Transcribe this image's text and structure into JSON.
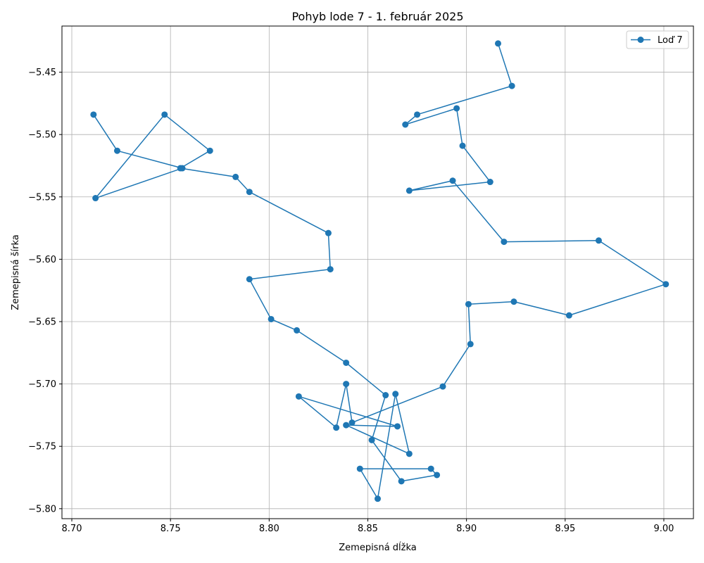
{
  "chart_data": {
    "type": "line",
    "title": "Pohyb lode 7 - 1. február 2025",
    "xlabel": "Zemepisná dĺžka",
    "ylabel": "Zemepisná šírka",
    "xlim": [
      8.695,
      9.015
    ],
    "ylim": [
      -5.808,
      -5.413
    ],
    "xticks": [
      8.7,
      8.75,
      8.8,
      8.85,
      8.9,
      8.95,
      9.0
    ],
    "xtick_labels": [
      "8.70",
      "8.75",
      "8.80",
      "8.85",
      "8.90",
      "8.95",
      "9.00"
    ],
    "yticks": [
      -5.8,
      -5.75,
      -5.7,
      -5.65,
      -5.6,
      -5.55,
      -5.5,
      -5.45
    ],
    "ytick_labels": [
      "−5.80",
      "−5.75",
      "−5.70",
      "−5.65",
      "−5.60",
      "−5.55",
      "−5.50",
      "−5.45"
    ],
    "grid": true,
    "legend_position": "top-right",
    "color": "#1f77b4",
    "series": [
      {
        "name": "Loď 7",
        "x": [
          8.916,
          8.923,
          8.875,
          8.869,
          8.895,
          8.898,
          8.912,
          8.871,
          8.893,
          8.919,
          8.967,
          9.001,
          8.952,
          8.924,
          8.901,
          8.902,
          8.888,
          8.842,
          8.839,
          8.834,
          8.815,
          8.865,
          8.839,
          8.871,
          8.864,
          8.855,
          8.846,
          8.882,
          8.885,
          8.867,
          8.852,
          8.859,
          8.839,
          8.814,
          8.801,
          8.79,
          8.831,
          8.83,
          8.79,
          8.783,
          8.755,
          8.77,
          8.747,
          8.712,
          8.756,
          8.723,
          8.711
        ],
        "y": [
          -5.427,
          -5.461,
          -5.484,
          -5.492,
          -5.479,
          -5.509,
          -5.538,
          -5.545,
          -5.537,
          -5.586,
          -5.585,
          -5.62,
          -5.645,
          -5.634,
          -5.636,
          -5.668,
          -5.702,
          -5.731,
          -5.7,
          -5.735,
          -5.71,
          -5.734,
          -5.733,
          -5.756,
          -5.708,
          -5.792,
          -5.768,
          -5.768,
          -5.773,
          -5.778,
          -5.745,
          -5.709,
          -5.683,
          -5.657,
          -5.648,
          -5.616,
          -5.608,
          -5.579,
          -5.546,
          -5.534,
          -5.527,
          -5.513,
          -5.484,
          -5.551,
          -5.527,
          -5.513,
          -5.484
        ]
      }
    ]
  }
}
